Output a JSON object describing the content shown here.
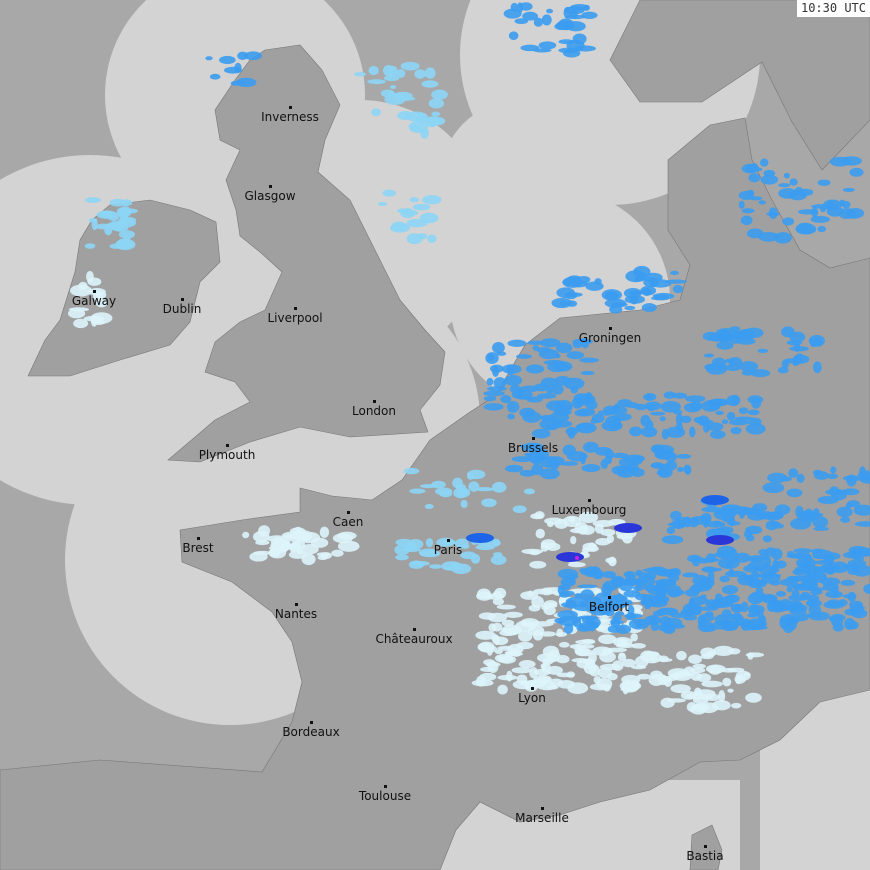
{
  "timestamp": "10:30 UTC",
  "colors": {
    "sea_outside_coverage": "#a8a8a8",
    "sea_in_coverage": "#d3d3d3",
    "land": "#a0a0a0",
    "rain_light": "#ddf4fb",
    "rain_moderate": "#8cd5f5",
    "rain_medium": "#3b9cf0",
    "rain_heavy": "#1e64e6",
    "rain_very_heavy": "#2a36d8",
    "rain_extreme": "#d020e0"
  },
  "cities": [
    {
      "name": "Inverness"
    },
    {
      "name": "Glasgow"
    },
    {
      "name": "Galway"
    },
    {
      "name": "Dublin"
    },
    {
      "name": "Liverpool"
    },
    {
      "name": "London"
    },
    {
      "name": "Plymouth"
    },
    {
      "name": "Groningen"
    },
    {
      "name": "Brussels"
    },
    {
      "name": "Luxembourg"
    },
    {
      "name": "Caen"
    },
    {
      "name": "Brest"
    },
    {
      "name": "Paris"
    },
    {
      "name": "Belfort"
    },
    {
      "name": "Nantes"
    },
    {
      "name": "Châteauroux"
    },
    {
      "name": "Lyon"
    },
    {
      "name": "Bordeaux"
    },
    {
      "name": "Toulouse"
    },
    {
      "name": "Marseille"
    },
    {
      "name": "Bastia"
    }
  ]
}
